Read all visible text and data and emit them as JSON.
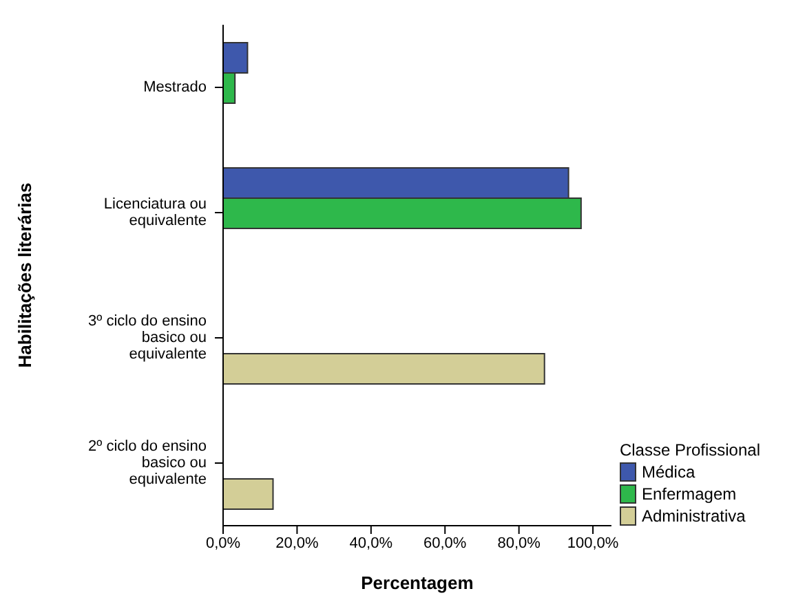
{
  "chart_data": {
    "type": "bar",
    "orientation": "horizontal",
    "xlabel": "Percentagem",
    "ylabel": "Habilitações literárias",
    "legend_title": "Classe Profissional",
    "legend": "bottom right",
    "grid": false,
    "categories": [
      "Mestrado",
      "Licenciatura ou equivalente",
      "3º ciclo do ensino basico ou equivalente",
      "2º ciclo do ensino basico ou equivalente"
    ],
    "series": [
      {
        "name": "Médica",
        "color": "#3e58ac",
        "values": [
          6.6,
          93.4,
          null,
          null
        ]
      },
      {
        "name": "Enfermagem",
        "color": "#2eb84b",
        "values": [
          3.2,
          96.8,
          null,
          null
        ]
      },
      {
        "name": "Administrativa",
        "color": "#d3ce97",
        "values": [
          null,
          null,
          86.9,
          13.5
        ]
      }
    ],
    "xlim": [
      0,
      105
    ],
    "xticks": [
      {
        "value": 0,
        "label": "0,0%"
      },
      {
        "value": 20,
        "label": "20,0%"
      },
      {
        "value": 40,
        "label": "40,0%"
      },
      {
        "value": 60,
        "label": "60,0%"
      },
      {
        "value": 80,
        "label": "80,0%"
      },
      {
        "value": 100,
        "label": "100,0%"
      }
    ]
  }
}
